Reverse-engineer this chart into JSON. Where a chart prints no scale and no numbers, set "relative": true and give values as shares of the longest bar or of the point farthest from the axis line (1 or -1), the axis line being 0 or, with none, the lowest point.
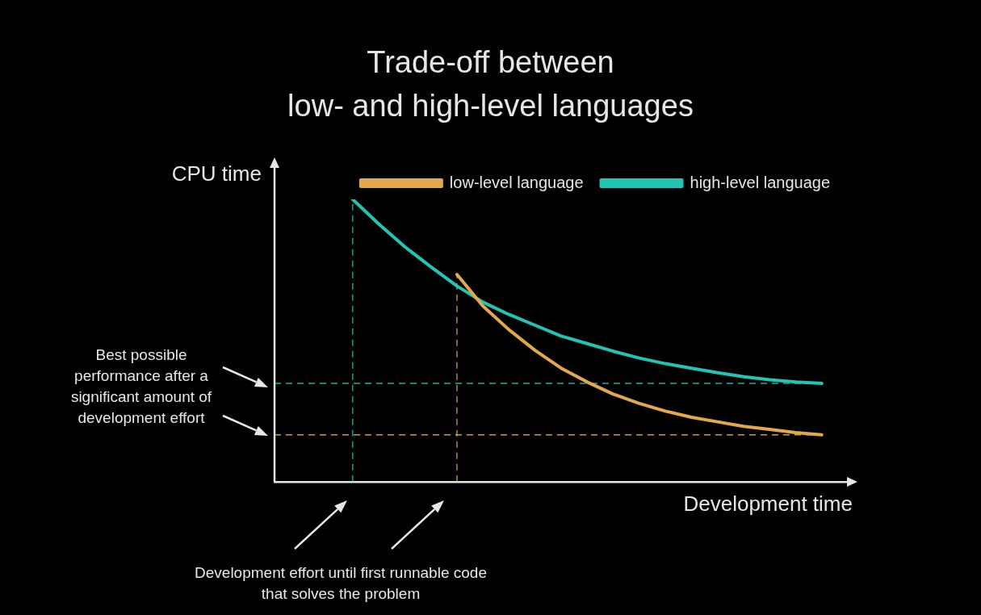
{
  "chart_data": {
    "type": "line",
    "title": "Trade-off between\nlow- and high-level languages",
    "xlabel": "Development time",
    "ylabel": "CPU time",
    "relative": true,
    "legend": "top right",
    "marker": "none",
    "line_style": "solid",
    "categories": [
      null,
      null,
      null,
      null,
      null,
      null,
      null,
      null,
      null,
      null,
      null,
      null,
      null,
      null,
      null,
      null,
      null,
      null,
      null,
      null,
      null,
      null,
      null
    ],
    "series": [
      {
        "name": "low-level language",
        "color": "#e2a94c",
        "values": [
          null,
          null,
          null,
          null,
          null,
          null,
          null,
          0.734,
          0.622,
          0.538,
          0.465,
          0.402,
          0.353,
          0.31,
          0.277,
          0.25,
          0.228,
          0.212,
          0.196,
          0.185,
          0.174,
          0.166,
          null
        ]
      },
      {
        "name": "high-level language",
        "color": "#22c4b4",
        "values": [
          null,
          null,
          null,
          1,
          0.913,
          0.832,
          0.761,
          0.693,
          0.636,
          0.592,
          0.554,
          0.516,
          0.489,
          0.462,
          0.438,
          0.418,
          0.402,
          0.386,
          0.372,
          0.361,
          0.353,
          0.348,
          null
        ]
      }
    ],
    "ref_lines": [
      {
        "axis": "y",
        "value": 0.348,
        "color": "#22a9a0",
        "line_style": "dashed"
      },
      {
        "axis": "y",
        "value": 0.166,
        "color": "#c99a48",
        "line_style": "dashed"
      }
    ],
    "annotations": [
      "Best possible performance after a significant amount of development effort",
      "Development effort until first runnable code that solves the problem"
    ]
  }
}
